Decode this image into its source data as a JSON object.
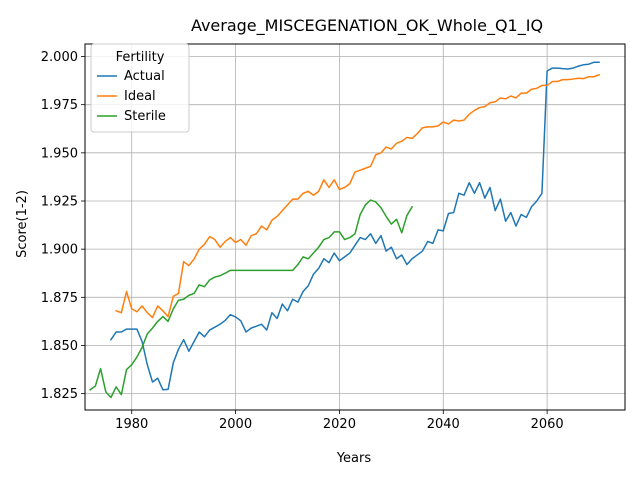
{
  "chart_data": {
    "type": "line",
    "title": "Average_MISCEGENATION_OK_Whole_Q1_IQ",
    "xlabel": "Years",
    "ylabel": "Score(1-2)",
    "xlim": [
      1971,
      2075
    ],
    "ylim": [
      1.8165,
      2.0065
    ],
    "x_ticks": [
      1980,
      2000,
      2020,
      2040,
      2060
    ],
    "y_ticks": [
      1.825,
      1.85,
      1.875,
      1.9,
      1.925,
      1.95,
      1.975,
      2.0
    ],
    "x_tick_labels": [
      "1980",
      "2000",
      "2020",
      "2040",
      "2060"
    ],
    "y_tick_labels": [
      "1.825",
      "1.850",
      "1.875",
      "1.900",
      "1.925",
      "1.950",
      "1.975",
      "2.000"
    ],
    "grid": true,
    "legend": {
      "title": "Fertility",
      "placement": "top-left"
    },
    "series": [
      {
        "name": "Actual",
        "color": "#1f77b4",
        "points": [
          [
            1976,
            1.853
          ],
          [
            1977,
            1.857
          ],
          [
            1978,
            1.857
          ],
          [
            1979,
            1.8585
          ],
          [
            1980,
            1.8585
          ],
          [
            1981,
            1.8585
          ],
          [
            1982,
            1.852
          ],
          [
            1983,
            1.84
          ],
          [
            1984,
            1.831
          ],
          [
            1985,
            1.833
          ],
          [
            1986,
            1.827
          ],
          [
            1987,
            1.8272
          ],
          [
            1988,
            1.841
          ],
          [
            1989,
            1.848
          ],
          [
            1990,
            1.853
          ],
          [
            1991,
            1.847
          ],
          [
            1992,
            1.852
          ],
          [
            1993,
            1.857
          ],
          [
            1994,
            1.8545
          ],
          [
            1995,
            1.858
          ],
          [
            1996,
            1.8595
          ],
          [
            1997,
            1.861
          ],
          [
            1998,
            1.863
          ],
          [
            1999,
            1.866
          ],
          [
            2000,
            1.8648
          ],
          [
            2001,
            1.8628
          ],
          [
            2002,
            1.857
          ],
          [
            2003,
            1.859
          ],
          [
            2004,
            1.86
          ],
          [
            2005,
            1.861
          ],
          [
            2006,
            1.858
          ],
          [
            2007,
            1.867
          ],
          [
            2008,
            1.864
          ],
          [
            2009,
            1.8715
          ],
          [
            2010,
            1.868
          ],
          [
            2011,
            1.874
          ],
          [
            2012,
            1.8725
          ],
          [
            2013,
            1.878
          ],
          [
            2014,
            1.881
          ],
          [
            2015,
            1.887
          ],
          [
            2016,
            1.89
          ],
          [
            2017,
            1.895
          ],
          [
            2018,
            1.893
          ],
          [
            2019,
            1.898
          ],
          [
            2020,
            1.894
          ],
          [
            2021,
            1.896
          ],
          [
            2022,
            1.898
          ],
          [
            2023,
            1.902
          ],
          [
            2024,
            1.906
          ],
          [
            2025,
            1.905
          ],
          [
            2026,
            1.908
          ],
          [
            2027,
            1.903
          ],
          [
            2028,
            1.907
          ],
          [
            2029,
            1.899
          ],
          [
            2030,
            1.901
          ],
          [
            2031,
            1.895
          ],
          [
            2032,
            1.897
          ],
          [
            2033,
            1.892
          ],
          [
            2034,
            1.895
          ],
          [
            2035,
            1.897
          ],
          [
            2036,
            1.899
          ],
          [
            2037,
            1.904
          ],
          [
            2038,
            1.903
          ],
          [
            2039,
            1.91
          ],
          [
            2040,
            1.9095
          ],
          [
            2041,
            1.9185
          ],
          [
            2042,
            1.919
          ],
          [
            2043,
            1.929
          ],
          [
            2044,
            1.928
          ],
          [
            2045,
            1.9345
          ],
          [
            2046,
            1.929
          ],
          [
            2047,
            1.9345
          ],
          [
            2048,
            1.9265
          ],
          [
            2049,
            1.932
          ],
          [
            2050,
            1.92
          ],
          [
            2051,
            1.926
          ],
          [
            2052,
            1.9145
          ],
          [
            2053,
            1.919
          ],
          [
            2054,
            1.912
          ],
          [
            2055,
            1.918
          ],
          [
            2056,
            1.9165
          ],
          [
            2057,
            1.922
          ],
          [
            2058,
            1.925
          ],
          [
            2059,
            1.929
          ],
          [
            2060,
            1.9925
          ],
          [
            2061,
            1.994
          ],
          [
            2062,
            1.994
          ],
          [
            2063,
            1.9937
          ],
          [
            2064,
            1.9935
          ],
          [
            2065,
            1.994
          ],
          [
            2066,
            1.995
          ],
          [
            2067,
            1.9957
          ],
          [
            2068,
            1.996
          ],
          [
            2069,
            1.997
          ],
          [
            2070,
            1.997
          ]
        ]
      },
      {
        "name": "Ideal",
        "color": "#ff7f0e",
        "points": [
          [
            1977,
            1.868
          ],
          [
            1978,
            1.867
          ],
          [
            1979,
            1.878
          ],
          [
            1980,
            1.869
          ],
          [
            1981,
            1.8675
          ],
          [
            1982,
            1.8705
          ],
          [
            1983,
            1.867
          ],
          [
            1984,
            1.8645
          ],
          [
            1985,
            1.8705
          ],
          [
            1986,
            1.868
          ],
          [
            1987,
            1.865
          ],
          [
            1988,
            1.8755
          ],
          [
            1989,
            1.877
          ],
          [
            1990,
            1.8935
          ],
          [
            1991,
            1.8915
          ],
          [
            1992,
            1.8948
          ],
          [
            1993,
            1.9
          ],
          [
            1994,
            1.9025
          ],
          [
            1995,
            1.9065
          ],
          [
            1996,
            1.905
          ],
          [
            1997,
            1.901
          ],
          [
            1998,
            1.904
          ],
          [
            1999,
            1.906
          ],
          [
            2000,
            1.9035
          ],
          [
            2001,
            1.905
          ],
          [
            2002,
            1.902
          ],
          [
            2003,
            1.907
          ],
          [
            2004,
            1.908
          ],
          [
            2005,
            1.912
          ],
          [
            2006,
            1.91
          ],
          [
            2007,
            1.915
          ],
          [
            2008,
            1.917
          ],
          [
            2009,
            1.92
          ],
          [
            2010,
            1.923
          ],
          [
            2011,
            1.926
          ],
          [
            2012,
            1.926
          ],
          [
            2013,
            1.929
          ],
          [
            2014,
            1.93
          ],
          [
            2015,
            1.928
          ],
          [
            2016,
            1.93
          ],
          [
            2017,
            1.936
          ],
          [
            2018,
            1.932
          ],
          [
            2019,
            1.936
          ],
          [
            2020,
            1.931
          ],
          [
            2021,
            1.932
          ],
          [
            2022,
            1.934
          ],
          [
            2023,
            1.94
          ],
          [
            2024,
            1.941
          ],
          [
            2025,
            1.942
          ],
          [
            2026,
            1.943
          ],
          [
            2027,
            1.949
          ],
          [
            2028,
            1.95
          ],
          [
            2029,
            1.953
          ],
          [
            2030,
            1.952
          ],
          [
            2031,
            1.955
          ],
          [
            2032,
            1.956
          ],
          [
            2033,
            1.958
          ],
          [
            2034,
            1.9575
          ],
          [
            2035,
            1.96
          ],
          [
            2036,
            1.963
          ],
          [
            2037,
            1.9635
          ],
          [
            2038,
            1.9635
          ],
          [
            2039,
            1.964
          ],
          [
            2040,
            1.966
          ],
          [
            2041,
            1.965
          ],
          [
            2042,
            1.967
          ],
          [
            2043,
            1.9665
          ],
          [
            2044,
            1.967
          ],
          [
            2045,
            1.97
          ],
          [
            2046,
            1.972
          ],
          [
            2047,
            1.9735
          ],
          [
            2048,
            1.974
          ],
          [
            2049,
            1.976
          ],
          [
            2050,
            1.9765
          ],
          [
            2051,
            1.9785
          ],
          [
            2052,
            1.978
          ],
          [
            2053,
            1.9795
          ],
          [
            2054,
            1.9785
          ],
          [
            2055,
            1.981
          ],
          [
            2056,
            1.981
          ],
          [
            2057,
            1.983
          ],
          [
            2058,
            1.9835
          ],
          [
            2059,
            1.985
          ],
          [
            2060,
            1.985
          ],
          [
            2061,
            1.987
          ],
          [
            2062,
            1.987
          ],
          [
            2063,
            1.988
          ],
          [
            2064,
            1.988
          ],
          [
            2065,
            1.9883
          ],
          [
            2066,
            1.9887
          ],
          [
            2067,
            1.9885
          ],
          [
            2068,
            1.9895
          ],
          [
            2069,
            1.9895
          ],
          [
            2070,
            1.9905
          ]
        ]
      },
      {
        "name": "Sterile",
        "color": "#2ca02c",
        "points": [
          [
            1972,
            1.827
          ],
          [
            1973,
            1.829
          ],
          [
            1974,
            1.838
          ],
          [
            1975,
            1.826
          ],
          [
            1976,
            1.823
          ],
          [
            1977,
            1.8285
          ],
          [
            1978,
            1.8245
          ],
          [
            1979,
            1.8375
          ],
          [
            1980,
            1.84
          ],
          [
            1981,
            1.844
          ],
          [
            1982,
            1.849
          ],
          [
            1983,
            1.856
          ],
          [
            1984,
            1.859
          ],
          [
            1985,
            1.8625
          ],
          [
            1986,
            1.865
          ],
          [
            1987,
            1.8625
          ],
          [
            1988,
            1.869
          ],
          [
            1989,
            1.8735
          ],
          [
            1990,
            1.874
          ],
          [
            1991,
            1.876
          ],
          [
            1992,
            1.877
          ],
          [
            1993,
            1.8815
          ],
          [
            1994,
            1.8805
          ],
          [
            1995,
            1.884
          ],
          [
            1996,
            1.8855
          ],
          [
            1997,
            1.8862
          ],
          [
            1998,
            1.8875
          ],
          [
            1999,
            1.889
          ],
          [
            2000,
            1.889
          ],
          [
            2001,
            1.889
          ],
          [
            2002,
            1.889
          ],
          [
            2003,
            1.889
          ],
          [
            2004,
            1.889
          ],
          [
            2005,
            1.889
          ],
          [
            2006,
            1.889
          ],
          [
            2007,
            1.889
          ],
          [
            2008,
            1.889
          ],
          [
            2009,
            1.889
          ],
          [
            2010,
            1.889
          ],
          [
            2011,
            1.889
          ],
          [
            2012,
            1.892
          ],
          [
            2013,
            1.896
          ],
          [
            2014,
            1.895
          ],
          [
            2015,
            1.898
          ],
          [
            2016,
            1.901
          ],
          [
            2017,
            1.905
          ],
          [
            2018,
            1.906
          ],
          [
            2019,
            1.909
          ],
          [
            2020,
            1.909
          ],
          [
            2021,
            1.905
          ],
          [
            2022,
            1.906
          ],
          [
            2023,
            1.908
          ],
          [
            2024,
            1.918
          ],
          [
            2025,
            1.923
          ],
          [
            2026,
            1.9255
          ],
          [
            2027,
            1.9245
          ],
          [
            2028,
            1.9215
          ],
          [
            2029,
            1.917
          ],
          [
            2030,
            1.913
          ],
          [
            2031,
            1.9155
          ],
          [
            2032,
            1.9085
          ],
          [
            2033,
            1.9175
          ],
          [
            2034,
            1.922
          ]
        ]
      }
    ]
  }
}
